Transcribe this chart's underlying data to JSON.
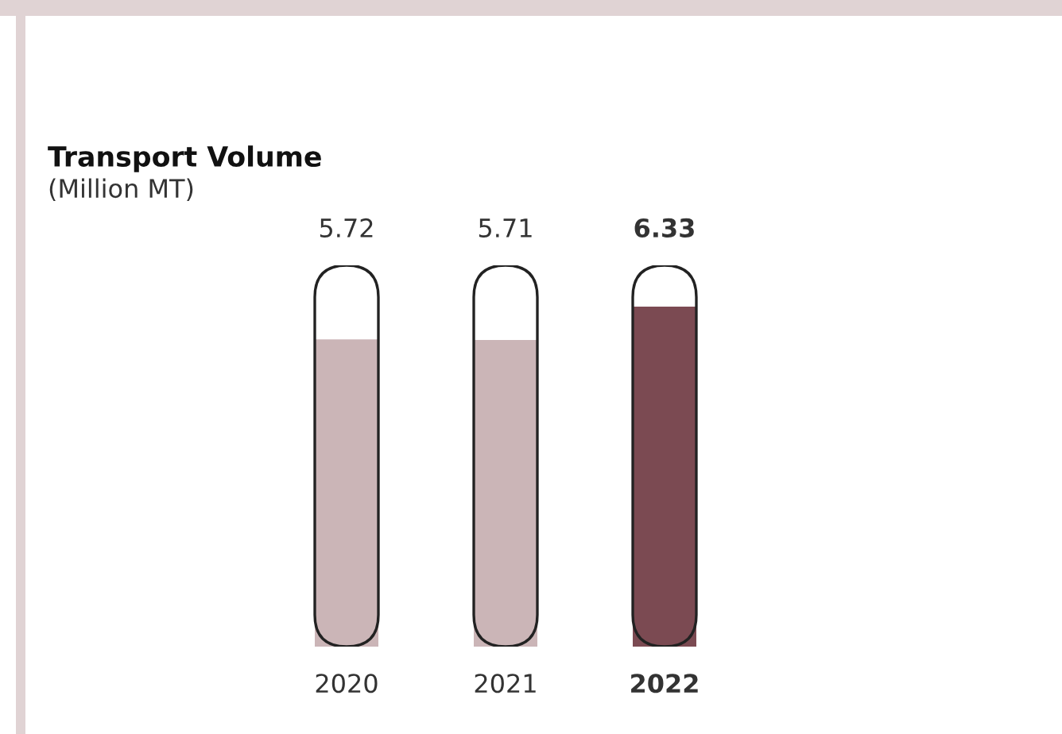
{
  "chart_data": {
    "type": "bar",
    "title": "Transport Volume",
    "subtitle": "(Million MT)",
    "categories": [
      "2020",
      "2021",
      "2022"
    ],
    "values": [
      5.72,
      5.71,
      6.33
    ],
    "colors": [
      "#cbb5b7",
      "#cbb5b7",
      "#7b4a52"
    ],
    "data_labels": true
  }
}
